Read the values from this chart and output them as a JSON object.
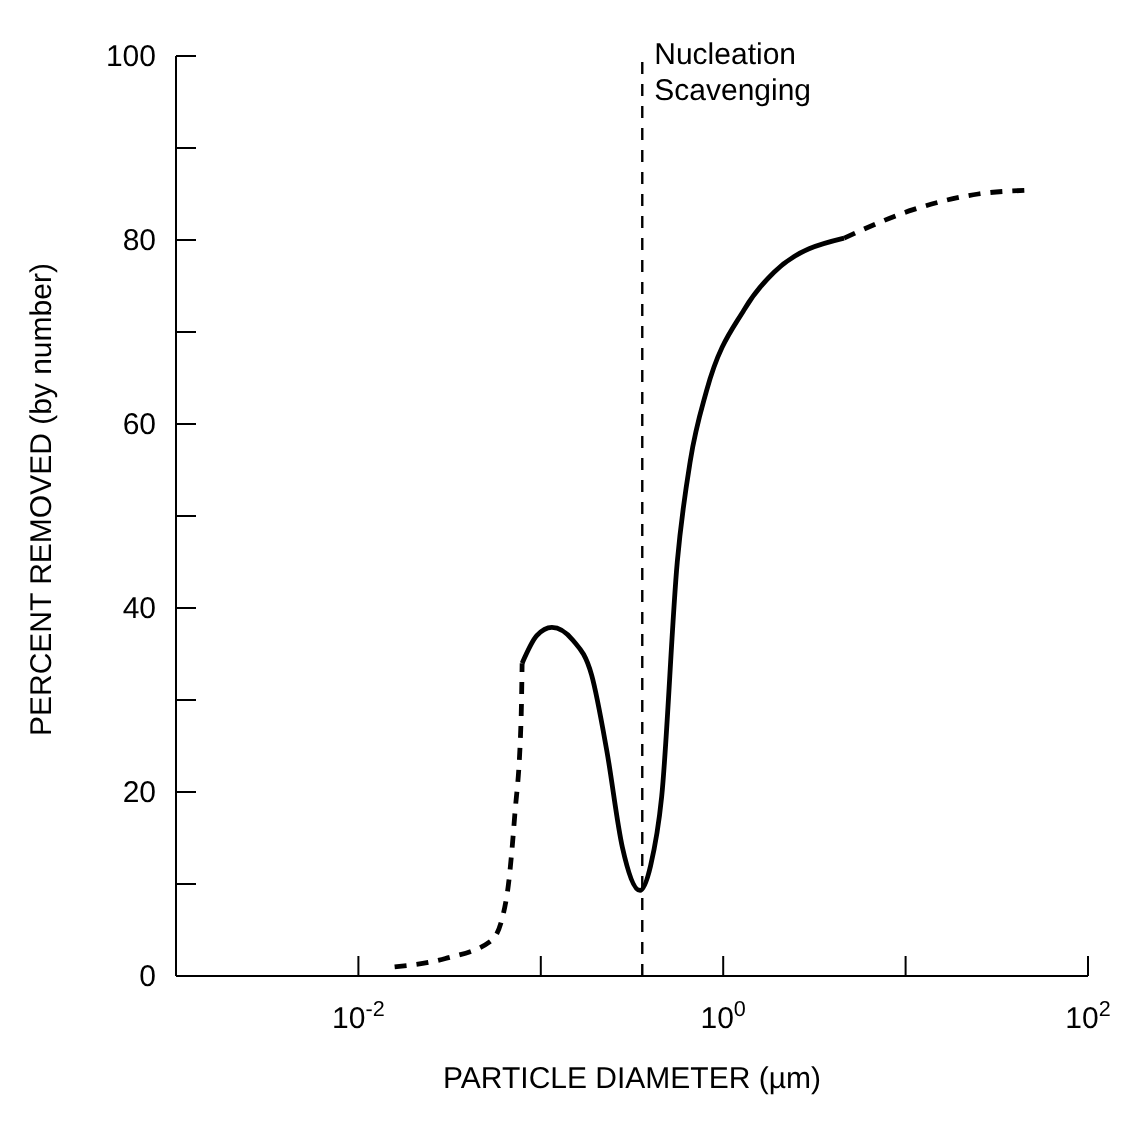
{
  "chart_data": {
    "type": "line",
    "xlabel": "PARTICLE DIAMETER  (µm)",
    "ylabel": "PERCENT REMOVED (by number)",
    "log": "x",
    "xlim": [
      0.001,
      100
    ],
    "ylim": [
      0,
      100
    ],
    "xticks": [
      {
        "value": 0.01,
        "label": "10$^{-2}$"
      },
      {
        "value": 0.1,
        "label": null
      },
      {
        "value": 1,
        "label": "10$^{0}$"
      },
      {
        "value": 10,
        "label": null
      },
      {
        "value": 100,
        "label": "10$^{2}$"
      }
    ],
    "yticks": [
      0,
      {
        "value": 10,
        "label": null
      },
      20,
      {
        "value": 30,
        "label": null
      },
      40,
      {
        "value": 50,
        "label": null
      },
      60,
      {
        "value": 70,
        "label": null
      },
      80,
      {
        "value": 90,
        "label": null
      },
      100
    ],
    "marker": "none",
    "series": [
      {
        "color": "#000000",
        "line_style": "dashed",
        "x": [
          0.0158,
          0.03,
          0.054,
          0.065,
          0.072,
          0.078,
          0.079
        ],
        "values": [
          1,
          1.9,
          3.9,
          8.6,
          17.5,
          28,
          34
        ]
      },
      {
        "color": "#000000",
        "line_style": "solid",
        "x": [
          0.079,
          0.095,
          0.115,
          0.15,
          0.19,
          0.23,
          0.28,
          0.35,
          0.4,
          0.46,
          0.56,
          0.66,
          0.81,
          1.3,
          1.9,
          4.6
        ],
        "values": [
          34,
          37,
          37.9,
          36.5,
          32.7,
          24.5,
          14,
          9.3,
          12,
          19.5,
          45,
          56,
          63.6,
          72.4,
          76.5,
          80.2
        ]
      },
      {
        "color": "#000000",
        "line_style": "dashed",
        "x": [
          4.6,
          11,
          25,
          45
        ],
        "values": [
          80.2,
          83.3,
          85,
          85.4
        ]
      }
    ],
    "ref_lines": [
      {
        "axis": "x",
        "value": 0.36,
        "label": "Nucleation Scavenging",
        "line_style": "dashed",
        "color": "#000000"
      }
    ]
  }
}
